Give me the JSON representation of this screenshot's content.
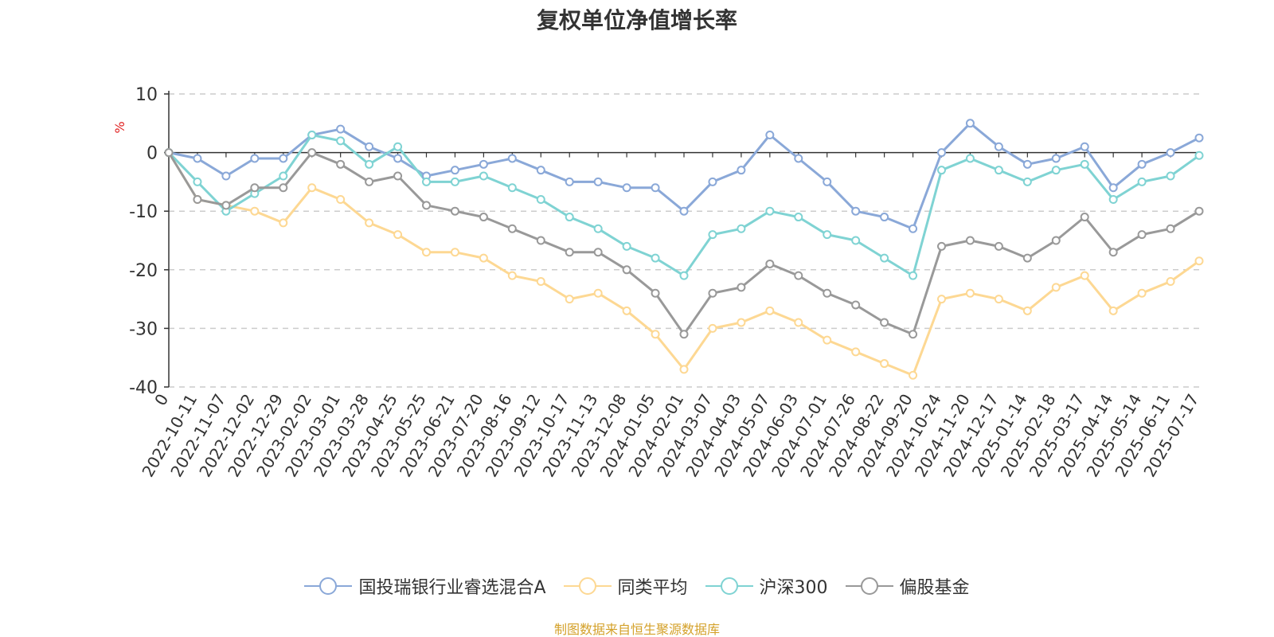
{
  "chart_data": {
    "type": "line",
    "title": "复权单位净值增长率",
    "ylabel": "%",
    "ylim": [
      -40,
      10
    ],
    "yticks": [
      10,
      0,
      -10,
      -20,
      -30,
      -40
    ],
    "grid": true,
    "legend_position": "bottom",
    "categories": [
      "0",
      "2022-10-11",
      "2022-11-07",
      "2022-12-02",
      "2022-12-29",
      "2023-02-02",
      "2023-03-01",
      "2023-03-28",
      "2023-04-25",
      "2023-05-25",
      "2023-06-21",
      "2023-07-20",
      "2023-08-16",
      "2023-09-12",
      "2023-10-17",
      "2023-11-13",
      "2023-12-08",
      "2024-01-05",
      "2024-02-01",
      "2024-03-07",
      "2024-04-03",
      "2024-05-07",
      "2024-06-03",
      "2024-07-01",
      "2024-07-26",
      "2024-08-22",
      "2024-09-20",
      "2024-10-24",
      "2024-11-20",
      "2024-12-17",
      "2025-01-14",
      "2025-02-18",
      "2025-03-17",
      "2025-04-14",
      "2025-05-14",
      "2025-06-11",
      "2025-07-17"
    ],
    "series": [
      {
        "name": "国投瑞银行业睿选混合A",
        "color": "#8aa8d8",
        "values": [
          0,
          -1,
          -4,
          -1,
          -1,
          3,
          4,
          1,
          -1,
          -4,
          -3,
          -2,
          -1,
          -3,
          -5,
          -5,
          -6,
          -6,
          -10,
          -5,
          -3,
          3,
          -1,
          -5,
          -10,
          -11,
          -13,
          0,
          5,
          1,
          -2,
          -1,
          1,
          -6,
          -2,
          0,
          2.5
        ]
      },
      {
        "name": "同类平均",
        "color": "#fdd893",
        "values": [
          0,
          -8,
          -9,
          -10,
          -12,
          -6,
          -8,
          -12,
          -14,
          -17,
          -17,
          -18,
          -21,
          -22,
          -25,
          -24,
          -27,
          -31,
          -37,
          -30,
          -29,
          -27,
          -29,
          -32,
          -34,
          -36,
          -38,
          -25,
          -24,
          -25,
          -27,
          -23,
          -21,
          -27,
          -24,
          -22,
          -18.5
        ]
      },
      {
        "name": "沪深300",
        "color": "#7fd3d3",
        "values": [
          0,
          -5,
          -10,
          -7,
          -4,
          3,
          2,
          -2,
          1,
          -5,
          -5,
          -4,
          -6,
          -8,
          -11,
          -13,
          -16,
          -18,
          -21,
          -14,
          -13,
          -10,
          -11,
          -14,
          -15,
          -18,
          -21,
          -3,
          -1,
          -3,
          -5,
          -3,
          -2,
          -8,
          -5,
          -4,
          -0.5
        ]
      },
      {
        "name": "偏股基金",
        "color": "#999999",
        "values": [
          0,
          -8,
          -9,
          -6,
          -6,
          0,
          -2,
          -5,
          -4,
          -9,
          -10,
          -11,
          -13,
          -15,
          -17,
          -17,
          -20,
          -24,
          -31,
          -24,
          -23,
          -19,
          -21,
          -24,
          -26,
          -29,
          -31,
          -16,
          -15,
          -16,
          -18,
          -15,
          -11,
          -17,
          -14,
          -13,
          -10
        ]
      }
    ]
  },
  "source": "制图数据来自恒生聚源数据库"
}
